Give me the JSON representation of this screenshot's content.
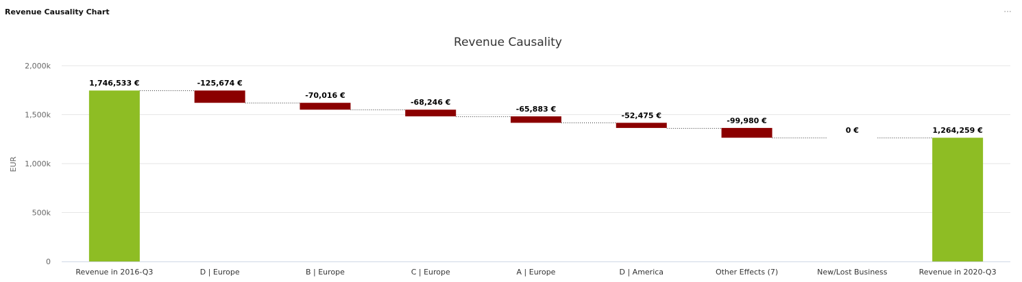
{
  "widget": {
    "title": "Revenue Causality Chart",
    "menu_icon": "ellipsis-icon",
    "menu_glyph": "···"
  },
  "colors": {
    "total": "#8ebd24",
    "decrease": "#8b0000",
    "gridline": "#e6e6e6",
    "axis": "#cfd7e6",
    "connector": "#333333"
  },
  "chart_data": {
    "type": "waterfall",
    "title": "Revenue Causality",
    "xlabel": "",
    "ylabel": "EUR",
    "ylim": [
      0,
      2000000
    ],
    "yticks": [
      0,
      500000,
      1000000,
      1500000,
      2000000
    ],
    "ytick_labels": [
      "0",
      "500k",
      "1,000k",
      "1,500k",
      "2,000k"
    ],
    "grid": true,
    "legend": "none",
    "categories": [
      "Revenue in 2016-Q3",
      "D | Europe",
      "B | Europe",
      "C | Europe",
      "A | Europe",
      "D | America",
      "Other Effects (7)",
      "New/Lost Business",
      "Revenue in 2020-Q3"
    ],
    "values": [
      1746533,
      -125674,
      -70016,
      -68246,
      -65883,
      -52475,
      -99980,
      0,
      1264259
    ],
    "kinds": [
      "total",
      "delta",
      "delta",
      "delta",
      "delta",
      "delta",
      "delta",
      "delta",
      "total"
    ],
    "data_labels": [
      "1,746,533 €",
      "-125,674 €",
      "-70,016 €",
      "-68,246 €",
      "-65,883 €",
      "-52,475 €",
      "-99,980 €",
      "0 €",
      "1,264,259 €"
    ]
  }
}
